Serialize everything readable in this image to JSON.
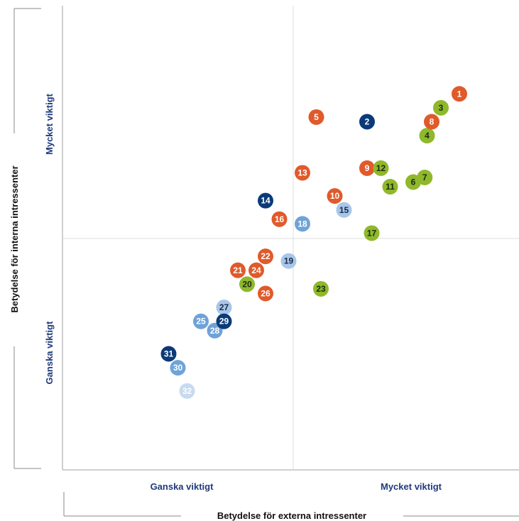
{
  "chart_data": {
    "type": "scatter",
    "xlabel": "Betydelse för externa intressenter",
    "ylabel": "Betydelse för interna intressenter",
    "x_ticks": [
      "Ganska viktigt",
      "Mycket viktigt"
    ],
    "y_ticks": [
      "Mycket viktigt",
      "Ganska viktigt"
    ],
    "xlim": [
      0,
      10
    ],
    "ylim": [
      0,
      10
    ],
    "grid": "quadrant",
    "colors": {
      "orange": "#e05a2b",
      "navy": "#0b3a78",
      "green": "#8fb82a",
      "mid_blue": "#6fa3d8",
      "light_blue": "#a8c6e8",
      "pale_blue": "#c8daf0"
    },
    "points": [
      {
        "label": "1",
        "x": 8.6,
        "y": 8.1,
        "color": "orange"
      },
      {
        "label": "2",
        "x": 6.6,
        "y": 7.5,
        "color": "navy"
      },
      {
        "label": "3",
        "x": 8.2,
        "y": 7.8,
        "color": "green"
      },
      {
        "label": "4",
        "x": 7.9,
        "y": 7.2,
        "color": "green"
      },
      {
        "label": "5",
        "x": 5.5,
        "y": 7.6,
        "color": "orange"
      },
      {
        "label": "6",
        "x": 7.6,
        "y": 6.2,
        "color": "green"
      },
      {
        "label": "7",
        "x": 7.85,
        "y": 6.3,
        "color": "green"
      },
      {
        "label": "8",
        "x": 8.0,
        "y": 7.5,
        "color": "orange"
      },
      {
        "label": "9",
        "x": 6.6,
        "y": 6.5,
        "color": "orange"
      },
      {
        "label": "10",
        "x": 5.9,
        "y": 5.9,
        "color": "orange"
      },
      {
        "label": "11",
        "x": 7.1,
        "y": 6.1,
        "color": "green"
      },
      {
        "label": "12",
        "x": 6.9,
        "y": 6.5,
        "color": "green"
      },
      {
        "label": "13",
        "x": 5.2,
        "y": 6.4,
        "color": "orange"
      },
      {
        "label": "14",
        "x": 4.4,
        "y": 5.8,
        "color": "navy"
      },
      {
        "label": "15",
        "x": 6.1,
        "y": 5.6,
        "color": "light_blue"
      },
      {
        "label": "16",
        "x": 4.7,
        "y": 5.4,
        "color": "orange"
      },
      {
        "label": "17",
        "x": 6.7,
        "y": 5.1,
        "color": "green"
      },
      {
        "label": "18",
        "x": 5.2,
        "y": 5.3,
        "color": "mid_blue"
      },
      {
        "label": "19",
        "x": 4.9,
        "y": 4.5,
        "color": "light_blue"
      },
      {
        "label": "20",
        "x": 4.0,
        "y": 4.0,
        "color": "green"
      },
      {
        "label": "21",
        "x": 3.8,
        "y": 4.3,
        "color": "orange"
      },
      {
        "label": "22",
        "x": 4.4,
        "y": 4.6,
        "color": "orange"
      },
      {
        "label": "23",
        "x": 5.6,
        "y": 3.9,
        "color": "green"
      },
      {
        "label": "24",
        "x": 4.2,
        "y": 4.3,
        "color": "orange"
      },
      {
        "label": "25",
        "x": 3.0,
        "y": 3.2,
        "color": "mid_blue"
      },
      {
        "label": "26",
        "x": 4.4,
        "y": 3.8,
        "color": "orange"
      },
      {
        "label": "27",
        "x": 3.5,
        "y": 3.5,
        "color": "light_blue"
      },
      {
        "label": "28",
        "x": 3.3,
        "y": 3.0,
        "color": "mid_blue"
      },
      {
        "label": "29",
        "x": 3.5,
        "y": 3.2,
        "color": "navy"
      },
      {
        "label": "30",
        "x": 2.5,
        "y": 2.2,
        "color": "mid_blue"
      },
      {
        "label": "31",
        "x": 2.3,
        "y": 2.5,
        "color": "navy"
      },
      {
        "label": "32",
        "x": 2.7,
        "y": 1.7,
        "color": "pale_blue"
      }
    ]
  }
}
